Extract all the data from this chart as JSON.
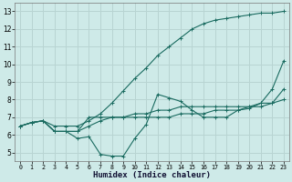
{
  "xlabel": "Humidex (Indice chaleur)",
  "ylabel": "",
  "bg_color": "#ceeae8",
  "grid_color": "#b8d4d2",
  "line_color": "#1a6b60",
  "xlim": [
    -0.5,
    23.5
  ],
  "ylim": [
    4.5,
    13.5
  ],
  "x_ticks": [
    0,
    1,
    2,
    3,
    4,
    5,
    6,
    7,
    8,
    9,
    10,
    11,
    12,
    13,
    14,
    15,
    16,
    17,
    18,
    19,
    20,
    21,
    22,
    23
  ],
  "y_ticks": [
    5,
    6,
    7,
    8,
    9,
    10,
    11,
    12,
    13
  ],
  "series": [
    [
      6.5,
      6.7,
      6.8,
      6.2,
      6.2,
      5.8,
      5.9,
      4.9,
      4.8,
      4.8,
      5.8,
      6.6,
      8.3,
      8.1,
      7.9,
      7.4,
      7.0,
      7.0,
      7.0,
      7.4,
      7.5,
      7.8,
      8.6,
      10.2
    ],
    [
      6.5,
      6.7,
      6.8,
      6.2,
      6.2,
      6.2,
      6.5,
      6.8,
      7.0,
      7.0,
      7.0,
      7.0,
      7.0,
      7.0,
      7.2,
      7.2,
      7.2,
      7.4,
      7.4,
      7.4,
      7.6,
      7.8,
      7.8,
      8.6
    ],
    [
      6.5,
      6.7,
      6.8,
      6.2,
      6.2,
      6.2,
      7.0,
      7.0,
      7.0,
      7.0,
      7.2,
      7.2,
      7.4,
      7.4,
      7.6,
      7.6,
      7.6,
      7.6,
      7.6,
      7.6,
      7.6,
      7.6,
      7.8,
      8.0
    ],
    [
      6.5,
      6.7,
      6.8,
      6.5,
      6.5,
      6.5,
      6.8,
      7.2,
      7.8,
      8.5,
      9.2,
      9.8,
      10.5,
      11.0,
      11.5,
      12.0,
      12.3,
      12.5,
      12.6,
      12.7,
      12.8,
      12.9,
      12.9,
      13.0
    ]
  ]
}
